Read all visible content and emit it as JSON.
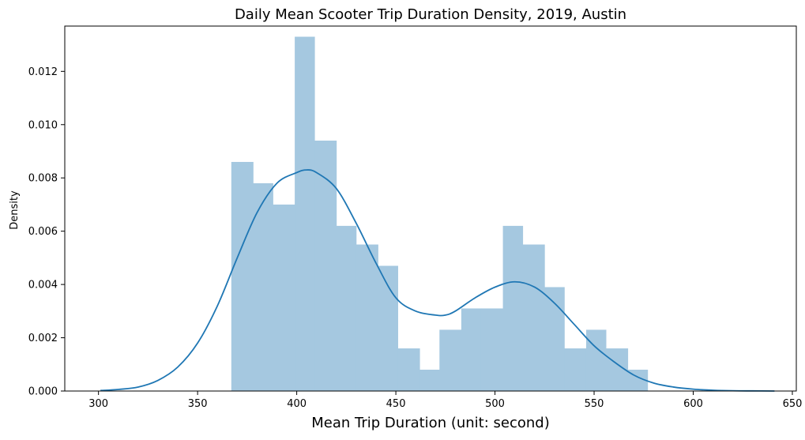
{
  "chart_data": {
    "type": "histogram",
    "title": "Daily Mean Scooter Trip Duration Density, 2019, Austin",
    "xlabel": "Mean Trip Duration (unit: second)",
    "ylabel": "Density",
    "xlim": [
      283,
      652
    ],
    "ylim": [
      0,
      0.0137
    ],
    "x_ticks": [
      300,
      350,
      400,
      450,
      500,
      550,
      600,
      650
    ],
    "y_ticks": [
      0.0,
      0.002,
      0.004,
      0.006,
      0.008,
      0.01,
      0.012
    ],
    "y_tick_labels": [
      "0.000",
      "0.002",
      "0.004",
      "0.006",
      "0.008",
      "0.010",
      "0.012"
    ],
    "grid": false,
    "histogram": {
      "color": "#a5c8e0",
      "bin_edges": [
        367,
        378,
        388,
        399,
        409,
        420,
        430,
        441,
        451,
        462,
        472,
        483,
        493,
        504,
        514,
        525,
        535,
        546,
        556,
        567,
        577
      ],
      "densities": [
        0.0086,
        0.0078,
        0.007,
        0.0133,
        0.0094,
        0.0062,
        0.0055,
        0.0047,
        0.0016,
        0.0008,
        0.0023,
        0.0031,
        0.0031,
        0.0062,
        0.0055,
        0.0039,
        0.0016,
        0.0023,
        0.0016,
        0.0008
      ]
    },
    "kde": {
      "color": "#1f77b4",
      "x": [
        301,
        310,
        320,
        330,
        340,
        350,
        360,
        370,
        380,
        390,
        400,
        405,
        410,
        420,
        430,
        440,
        450,
        460,
        470,
        475,
        480,
        490,
        500,
        510,
        520,
        530,
        540,
        550,
        560,
        570,
        580,
        590,
        600,
        610,
        620,
        630,
        641
      ],
      "y": [
        2e-05,
        6e-05,
        0.00015,
        0.0004,
        0.0009,
        0.0018,
        0.0032,
        0.005,
        0.0067,
        0.0078,
        0.0082,
        0.0083,
        0.0082,
        0.0076,
        0.0063,
        0.0048,
        0.0035,
        0.003,
        0.00285,
        0.00285,
        0.003,
        0.0035,
        0.0039,
        0.0041,
        0.0039,
        0.0033,
        0.0025,
        0.0017,
        0.0011,
        0.0006,
        0.0003,
        0.00015,
        7e-05,
        3e-05,
        1e-05,
        5e-06,
        0.0
      ]
    }
  }
}
